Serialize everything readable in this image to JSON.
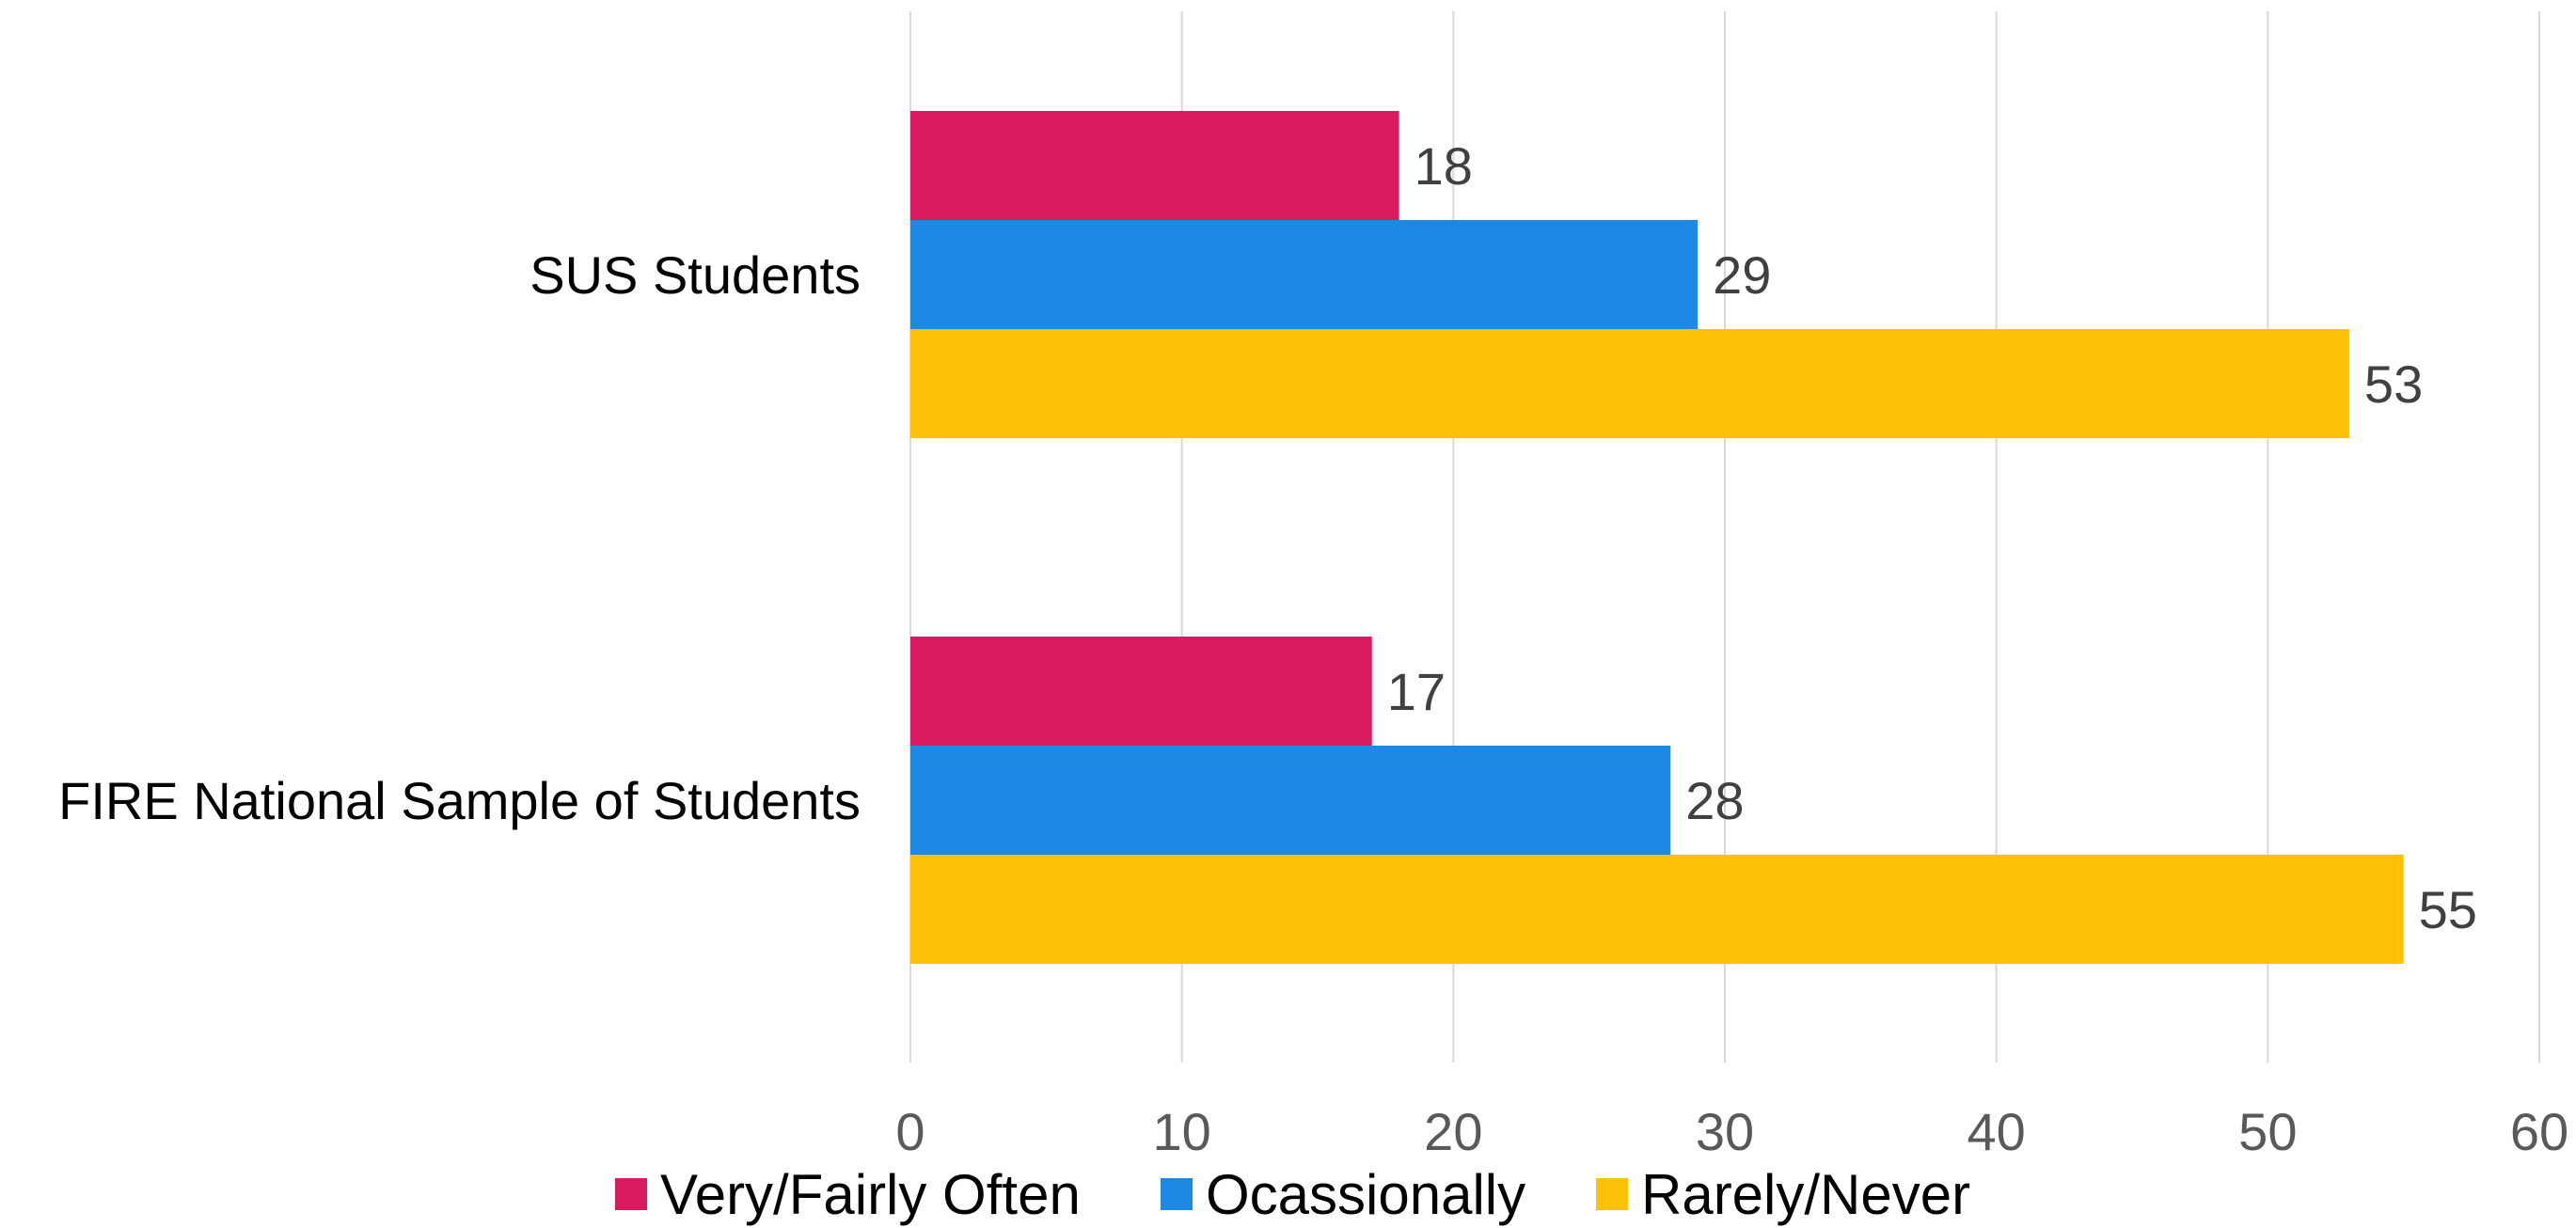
{
  "chart_data": {
    "type": "bar",
    "orientation": "horizontal",
    "categories": [
      "SUS Students",
      "FIRE National Sample of Students"
    ],
    "series": [
      {
        "name": "Very/Fairly Often",
        "values": [
          18,
          17
        ],
        "color": "#D81B60"
      },
      {
        "name": "Ocassionally",
        "values": [
          29,
          28
        ],
        "color": "#1E88E5"
      },
      {
        "name": "Rarely/Never",
        "values": [
          53,
          55
        ],
        "color": "#FFC107"
      }
    ],
    "xlim": [
      0,
      60
    ],
    "x_ticks": [
      0,
      10,
      20,
      30,
      40,
      50,
      60
    ],
    "grid": true,
    "legend": "bottom"
  }
}
